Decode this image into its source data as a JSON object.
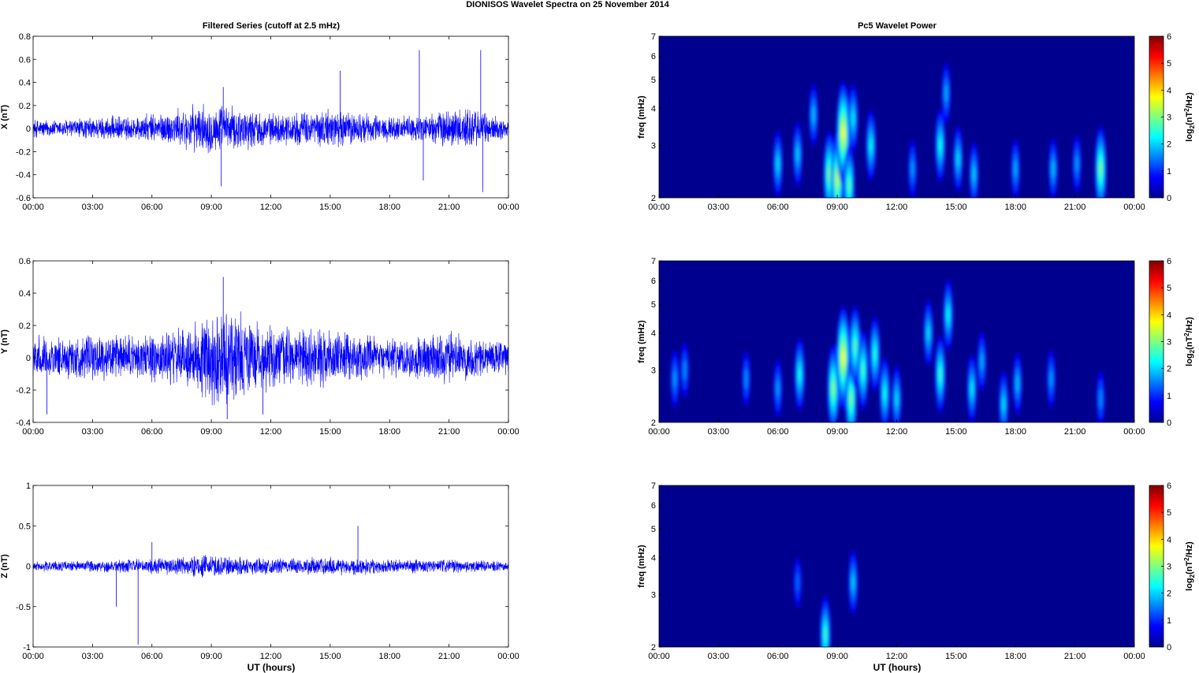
{
  "figure_title": "DIONISOS Wavelet Spectra on 25 November  2014",
  "left_column_title": "Filtered Series (cutoff at 2.5 mHz)",
  "right_column_title": "Pc5 Wavelet Power",
  "xlabel": "UT (hours)",
  "colors": {
    "trace": "#0000ff",
    "spectrum_background": "#00008f",
    "axes": "#000000"
  },
  "chart_data": [
    {
      "type": "line",
      "panel": "X",
      "ylabel": "X (nT)",
      "xlim": [
        "00:00",
        "24:00"
      ],
      "ylim": [
        -0.6,
        0.8
      ],
      "x_ticks": [
        "00:00",
        "03:00",
        "06:00",
        "09:00",
        "12:00",
        "15:00",
        "18:00",
        "21:00",
        "00:00"
      ],
      "y_ticks": [
        "-0.6",
        "-0.4",
        "-0.2",
        "0",
        "0.2",
        "0.4",
        "0.6",
        "0.8"
      ],
      "series": [
        {
          "x_hours": [
            0,
            1,
            2,
            3,
            4,
            5,
            6,
            7,
            8,
            9,
            10,
            11,
            12,
            13,
            14,
            15,
            16,
            17,
            18,
            19,
            20,
            21,
            22,
            23,
            24
          ],
          "envelope_nT": [
            0.08,
            0.07,
            0.08,
            0.09,
            0.1,
            0.1,
            0.12,
            0.14,
            0.18,
            0.2,
            0.18,
            0.16,
            0.12,
            0.13,
            0.14,
            0.16,
            0.14,
            0.12,
            0.1,
            0.1,
            0.12,
            0.16,
            0.18,
            0.12,
            0.08
          ],
          "spikes": [
            {
              "hour": 9.5,
              "value": -0.5
            },
            {
              "hour": 9.6,
              "value": 0.36
            },
            {
              "hour": 15.5,
              "value": 0.5
            },
            {
              "hour": 19.5,
              "value": 0.68
            },
            {
              "hour": 19.7,
              "value": -0.45
            },
            {
              "hour": 22.6,
              "value": 0.68
            },
            {
              "hour": 22.7,
              "value": -0.55
            }
          ]
        }
      ]
    },
    {
      "type": "line",
      "panel": "Y",
      "ylabel": "Y (nT)",
      "xlim": [
        "00:00",
        "24:00"
      ],
      "ylim": [
        -0.4,
        0.6
      ],
      "x_ticks": [
        "00:00",
        "03:00",
        "06:00",
        "09:00",
        "12:00",
        "15:00",
        "18:00",
        "21:00",
        "00:00"
      ],
      "y_ticks": [
        "-0.4",
        "-0.2",
        "0",
        "0.2",
        "0.4",
        "0.6"
      ],
      "series": [
        {
          "x_hours": [
            0,
            1,
            2,
            3,
            4,
            5,
            6,
            7,
            8,
            9,
            10,
            11,
            12,
            13,
            14,
            15,
            16,
            17,
            18,
            19,
            20,
            21,
            22,
            23,
            24
          ],
          "envelope_nT": [
            0.12,
            0.12,
            0.12,
            0.13,
            0.13,
            0.13,
            0.14,
            0.16,
            0.18,
            0.28,
            0.3,
            0.22,
            0.18,
            0.17,
            0.16,
            0.16,
            0.14,
            0.12,
            0.11,
            0.12,
            0.14,
            0.15,
            0.12,
            0.11,
            0.1
          ],
          "spikes": [
            {
              "hour": 9.6,
              "value": 0.5
            },
            {
              "hour": 9.8,
              "value": -0.38
            },
            {
              "hour": 11.6,
              "value": -0.35
            },
            {
              "hour": 0.7,
              "value": -0.35
            }
          ]
        }
      ]
    },
    {
      "type": "line",
      "panel": "Z",
      "ylabel": "Z (nT)",
      "xlim": [
        "00:00",
        "24:00"
      ],
      "ylim": [
        -1,
        1
      ],
      "x_ticks": [
        "00:00",
        "03:00",
        "06:00",
        "09:00",
        "12:00",
        "15:00",
        "18:00",
        "21:00",
        "00:00"
      ],
      "y_ticks": [
        "-1",
        "-0.5",
        "0",
        "0.5",
        "1"
      ],
      "series": [
        {
          "x_hours": [
            0,
            1,
            2,
            3,
            4,
            5,
            6,
            7,
            8,
            9,
            10,
            11,
            12,
            13,
            14,
            15,
            16,
            17,
            18,
            19,
            20,
            21,
            22,
            23,
            24
          ],
          "envelope_nT": [
            0.06,
            0.06,
            0.06,
            0.07,
            0.08,
            0.08,
            0.09,
            0.1,
            0.12,
            0.13,
            0.12,
            0.1,
            0.09,
            0.09,
            0.1,
            0.11,
            0.1,
            0.09,
            0.08,
            0.08,
            0.08,
            0.08,
            0.07,
            0.06,
            0.05
          ],
          "spikes": [
            {
              "hour": 5.3,
              "value": -0.97
            },
            {
              "hour": 4.2,
              "value": -0.5
            },
            {
              "hour": 16.4,
              "value": 0.5
            },
            {
              "hour": 6.0,
              "value": 0.3
            }
          ]
        }
      ]
    },
    {
      "type": "heatmap",
      "panel": "X power",
      "ylabel": "freq (mHz)",
      "yscale": "log",
      "xlim": [
        "00:00",
        "24:00"
      ],
      "ylim_mHz": [
        2,
        7
      ],
      "x_ticks": [
        "00:00",
        "03:00",
        "06:00",
        "09:00",
        "12:00",
        "15:00",
        "18:00",
        "21:00",
        "00:00"
      ],
      "y_ticks": [
        "2",
        "3",
        "4",
        "5",
        "6",
        "7"
      ],
      "colorbar": {
        "label": "log2(nT2/Hz)",
        "range": [
          0,
          6
        ],
        "ticks": [
          "0",
          "1",
          "2",
          "3",
          "4",
          "5",
          "6"
        ]
      },
      "blobs": [
        {
          "hour": 6.0,
          "freq_mHz": 2.6,
          "power": 1.3
        },
        {
          "hour": 7.0,
          "freq_mHz": 2.8,
          "power": 1.2
        },
        {
          "hour": 7.8,
          "freq_mHz": 3.8,
          "power": 1.1
        },
        {
          "hour": 8.6,
          "freq_mHz": 2.4,
          "power": 2.2
        },
        {
          "hour": 9.0,
          "freq_mHz": 2.3,
          "power": 2.6
        },
        {
          "hour": 9.3,
          "freq_mHz": 3.3,
          "power": 3.0
        },
        {
          "hour": 9.6,
          "freq_mHz": 2.2,
          "power": 2.0
        },
        {
          "hour": 9.8,
          "freq_mHz": 3.7,
          "power": 1.4
        },
        {
          "hour": 10.7,
          "freq_mHz": 3.0,
          "power": 1.5
        },
        {
          "hour": 12.8,
          "freq_mHz": 2.5,
          "power": 0.9
        },
        {
          "hour": 14.2,
          "freq_mHz": 3.0,
          "power": 1.6
        },
        {
          "hour": 14.5,
          "freq_mHz": 4.5,
          "power": 1.0
        },
        {
          "hour": 15.1,
          "freq_mHz": 2.7,
          "power": 1.3
        },
        {
          "hour": 15.9,
          "freq_mHz": 2.4,
          "power": 1.2
        },
        {
          "hour": 18.0,
          "freq_mHz": 2.5,
          "power": 1.0
        },
        {
          "hour": 19.9,
          "freq_mHz": 2.5,
          "power": 1.1
        },
        {
          "hour": 21.1,
          "freq_mHz": 2.6,
          "power": 0.9
        },
        {
          "hour": 22.3,
          "freq_mHz": 2.5,
          "power": 2.2
        }
      ]
    },
    {
      "type": "heatmap",
      "panel": "Y power",
      "ylabel": "freq (mHz)",
      "yscale": "log",
      "xlim": [
        "00:00",
        "24:00"
      ],
      "ylim_mHz": [
        2,
        7
      ],
      "x_ticks": [
        "00:00",
        "03:00",
        "06:00",
        "09:00",
        "12:00",
        "15:00",
        "18:00",
        "21:00",
        "00:00"
      ],
      "y_ticks": [
        "2",
        "3",
        "4",
        "5",
        "6",
        "7"
      ],
      "colorbar": {
        "label": "log2(nT2/Hz)",
        "range": [
          0,
          6
        ],
        "ticks": [
          "0",
          "1",
          "2",
          "3",
          "4",
          "5",
          "6"
        ]
      },
      "blobs": [
        {
          "hour": 0.8,
          "freq_mHz": 2.8,
          "power": 0.9
        },
        {
          "hour": 1.3,
          "freq_mHz": 3.0,
          "power": 0.8
        },
        {
          "hour": 4.4,
          "freq_mHz": 2.8,
          "power": 0.8
        },
        {
          "hour": 6.0,
          "freq_mHz": 2.6,
          "power": 0.9
        },
        {
          "hour": 7.1,
          "freq_mHz": 2.9,
          "power": 1.6
        },
        {
          "hour": 8.8,
          "freq_mHz": 2.6,
          "power": 2.3
        },
        {
          "hour": 9.3,
          "freq_mHz": 3.3,
          "power": 3.0
        },
        {
          "hour": 9.7,
          "freq_mHz": 2.4,
          "power": 2.2
        },
        {
          "hour": 9.9,
          "freq_mHz": 3.6,
          "power": 2.0
        },
        {
          "hour": 10.3,
          "freq_mHz": 3.0,
          "power": 1.9
        },
        {
          "hour": 10.9,
          "freq_mHz": 3.4,
          "power": 1.7
        },
        {
          "hour": 11.4,
          "freq_mHz": 2.5,
          "power": 1.6
        },
        {
          "hour": 12.0,
          "freq_mHz": 2.4,
          "power": 1.3
        },
        {
          "hour": 13.6,
          "freq_mHz": 4.0,
          "power": 1.3
        },
        {
          "hour": 14.2,
          "freq_mHz": 2.9,
          "power": 1.8
        },
        {
          "hour": 14.6,
          "freq_mHz": 4.6,
          "power": 1.5
        },
        {
          "hour": 15.8,
          "freq_mHz": 2.6,
          "power": 1.4
        },
        {
          "hour": 16.3,
          "freq_mHz": 3.2,
          "power": 1.0
        },
        {
          "hour": 17.4,
          "freq_mHz": 2.3,
          "power": 1.3
        },
        {
          "hour": 18.1,
          "freq_mHz": 2.7,
          "power": 1.1
        },
        {
          "hour": 19.8,
          "freq_mHz": 2.8,
          "power": 0.9
        },
        {
          "hour": 22.3,
          "freq_mHz": 2.4,
          "power": 0.8
        }
      ]
    },
    {
      "type": "heatmap",
      "panel": "Z power",
      "ylabel": "freq (mHz)",
      "yscale": "log",
      "xlim": [
        "00:00",
        "24:00"
      ],
      "ylim_mHz": [
        2,
        7
      ],
      "x_ticks": [
        "00:00",
        "03:00",
        "06:00",
        "09:00",
        "12:00",
        "15:00",
        "18:00",
        "21:00",
        "00:00"
      ],
      "y_ticks": [
        "2",
        "3",
        "4",
        "5",
        "6",
        "7"
      ],
      "colorbar": {
        "label": "log2(nT2/Hz)",
        "range": [
          0,
          6
        ],
        "ticks": [
          "0",
          "1",
          "2",
          "3",
          "4",
          "5",
          "6"
        ]
      },
      "blobs": [
        {
          "hour": 7.0,
          "freq_mHz": 3.3,
          "power": 0.6
        },
        {
          "hour": 8.4,
          "freq_mHz": 2.2,
          "power": 1.8
        },
        {
          "hour": 9.8,
          "freq_mHz": 3.3,
          "power": 1.2
        }
      ]
    }
  ]
}
